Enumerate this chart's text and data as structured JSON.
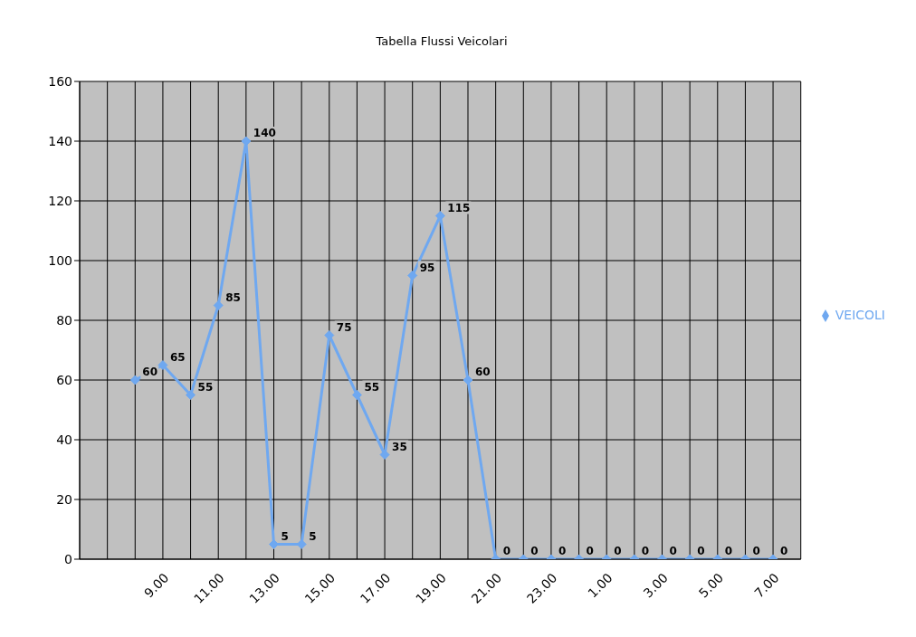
{
  "chart_data": {
    "type": "line",
    "title": "Tabella Flussi Veicolari",
    "categories": [
      null,
      null,
      "9.00",
      null,
      "11.00",
      null,
      "13.00",
      null,
      "15.00",
      null,
      "17.00",
      null,
      "19.00",
      null,
      "21.00",
      null,
      "23.00",
      null,
      "1.00",
      null,
      "3.00",
      null,
      "5.00",
      null,
      "7.00"
    ],
    "series": [
      {
        "name": "VEICOLI",
        "color": "#6fa8f0",
        "values": [
          null,
          60,
          65,
          55,
          85,
          140,
          5,
          5,
          75,
          55,
          35,
          95,
          115,
          60,
          0,
          0,
          0,
          0,
          0,
          0,
          0,
          0,
          0,
          0,
          0
        ]
      }
    ],
    "ylim": [
      0,
      160
    ],
    "yticks": [
      0,
      20,
      40,
      60,
      80,
      100,
      120,
      140,
      160
    ],
    "grid": true,
    "legend": "right",
    "marker": "diamond",
    "line_style": "solid",
    "data_labels": true
  }
}
